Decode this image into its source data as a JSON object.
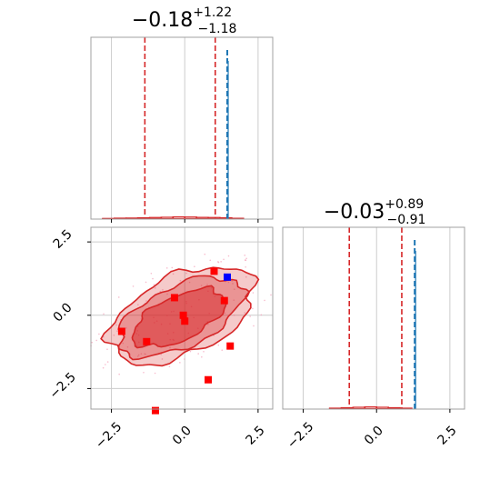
{
  "chart_data": [
    {
      "type": "histogram",
      "panel": "top-left marginal",
      "title": {
        "median": "−0.18",
        "plus": "+1.22",
        "minus": "−1.18"
      },
      "xlim": [
        -3.2,
        3.0
      ],
      "xticks": [
        -2.5,
        0.0,
        2.5
      ],
      "tick_labels_shown": false,
      "grid": true,
      "quantile_lines": [
        -1.36,
        1.04
      ],
      "quantile_color": "#d62728",
      "truth_line": 1.45,
      "truth_color": "#1f77b4",
      "hist_x": [
        -2.6,
        -2.2,
        -1.8,
        -1.4,
        -1.0,
        -0.6,
        -0.2,
        0.2,
        0.6,
        1.0,
        1.4,
        1.8
      ],
      "hist_heights": [
        0.004,
        0.006,
        0.007,
        0.008,
        0.01,
        0.012,
        0.014,
        0.013,
        0.011,
        0.01,
        0.008,
        0.005
      ],
      "truth_density": 1.0
    },
    {
      "type": "scatter",
      "panel": "bottom-left joint",
      "xlim": [
        -3.2,
        3.0
      ],
      "ylim": [
        -3.2,
        3.0
      ],
      "xticks": [
        -2.5,
        0.0,
        2.5
      ],
      "yticks": [
        -2.5,
        0.0,
        2.5
      ],
      "xtick_labels": [
        "−2.5",
        "0.0",
        "2.5"
      ],
      "ytick_labels": [
        "−2.5",
        "0.0",
        "2.5"
      ],
      "grid": true,
      "contour_color": "#d62728",
      "contour_levels": [
        {
          "level": "outer",
          "cx": -0.1,
          "cy": 0.0,
          "rx": 2.65,
          "ry": 1.35,
          "angle_deg": 25,
          "opacity": 0.45
        },
        {
          "level": "middle",
          "cx": -0.15,
          "cy": -0.05,
          "rx": 2.3,
          "ry": 1.05,
          "angle_deg": 25,
          "opacity": 0.6
        },
        {
          "level": "inner",
          "cx": -0.2,
          "cy": -0.1,
          "rx": 1.7,
          "ry": 0.75,
          "angle_deg": 25,
          "opacity": 0.95
        }
      ],
      "red_points": [
        {
          "x": -2.15,
          "y": -0.55
        },
        {
          "x": -1.3,
          "y": -0.9
        },
        {
          "x": -0.35,
          "y": 0.6
        },
        {
          "x": -0.05,
          "y": 0.0
        },
        {
          "x": 0.0,
          "y": -0.2
        },
        {
          "x": 1.0,
          "y": 1.5
        },
        {
          "x": 1.35,
          "y": 0.5
        },
        {
          "x": 1.55,
          "y": -1.05
        },
        {
          "x": 0.8,
          "y": -2.2
        },
        {
          "x": -1.0,
          "y": -3.25
        }
      ],
      "red_point_color": "#ff0000",
      "blue_point": {
        "x": 1.45,
        "y": 1.3
      },
      "blue_point_color": "#0000ff"
    },
    {
      "type": "histogram",
      "panel": "bottom-right marginal",
      "title": {
        "median": "−0.03",
        "plus": "+0.89",
        "minus": "−0.91"
      },
      "xlim": [
        -3.2,
        3.0
      ],
      "xticks": [
        -2.5,
        0.0,
        2.5
      ],
      "xtick_labels": [
        "−2.5",
        "0.0",
        "2.5"
      ],
      "grid": true,
      "quantile_lines": [
        -0.93,
        0.86
      ],
      "quantile_color": "#d62728",
      "truth_line": 1.3,
      "truth_color": "#1f77b4",
      "hist_x": [
        -1.4,
        -1.0,
        -0.6,
        -0.2,
        0.2,
        0.6,
        1.0
      ],
      "hist_heights": [
        0.006,
        0.009,
        0.012,
        0.014,
        0.012,
        0.009,
        0.006
      ],
      "truth_density": 1.0
    }
  ]
}
